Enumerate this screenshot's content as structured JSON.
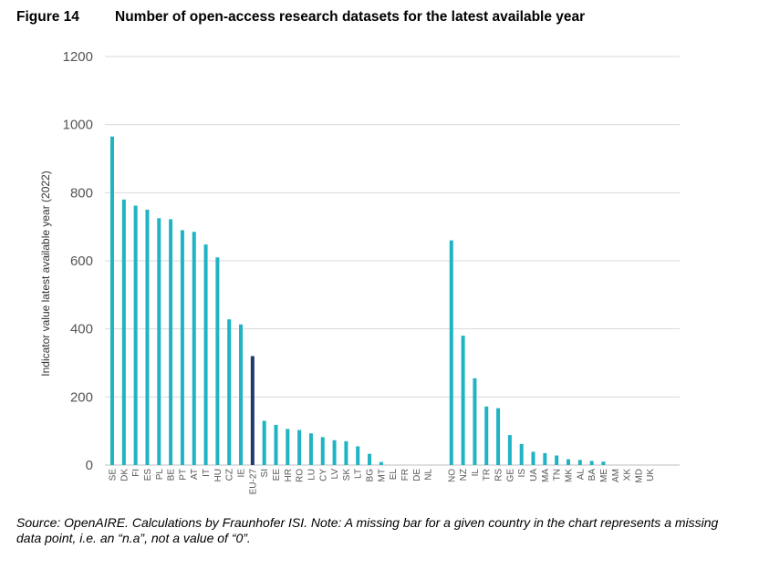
{
  "figure": {
    "label": "Figure 14",
    "title": "Number of open-access research datasets for the latest available year"
  },
  "note": "Source: OpenAIRE. Calculations by Fraunhofer ISI. Note: A missing bar for a given country in the chart represents a missing data point, i.e. an “n.a”, not a value of “0”.",
  "colors": {
    "bar": "#1fb3c4",
    "highlight": "#1f3b6e",
    "grid": "#d9d9d9",
    "text": "#555555"
  },
  "chart_data": {
    "type": "bar",
    "title": "",
    "xlabel": "",
    "ylabel": "Indicator value latest available year (2022)",
    "ylim": [
      0,
      1200
    ],
    "yticks": [
      0,
      200,
      400,
      600,
      800,
      1000,
      1200
    ],
    "grid": true,
    "highlight_category": "EU-27",
    "categories": [
      "SE",
      "DK",
      "FI",
      "ES",
      "PL",
      "BE",
      "PT",
      "AT",
      "IT",
      "HU",
      "CZ",
      "IE",
      "EU-27",
      "SI",
      "EE",
      "HR",
      "RO",
      "LU",
      "CY",
      "LV",
      "SK",
      "LT",
      "BG",
      "MT",
      "EL",
      "FR",
      "DE",
      "NL",
      "",
      "NO",
      "NZ",
      "IL",
      "TR",
      "RS",
      "GE",
      "IS",
      "UA",
      "MA",
      "TN",
      "MK",
      "AL",
      "BA",
      "ME",
      "AM",
      "XK",
      "MD",
      "UK"
    ],
    "values": [
      965,
      780,
      762,
      750,
      725,
      722,
      690,
      685,
      648,
      610,
      428,
      413,
      320,
      130,
      118,
      106,
      103,
      93,
      82,
      73,
      70,
      55,
      33,
      9,
      null,
      null,
      null,
      null,
      null,
      660,
      380,
      255,
      172,
      167,
      88,
      62,
      39,
      35,
      28,
      17,
      15,
      12,
      10,
      null,
      null,
      null,
      null
    ]
  }
}
